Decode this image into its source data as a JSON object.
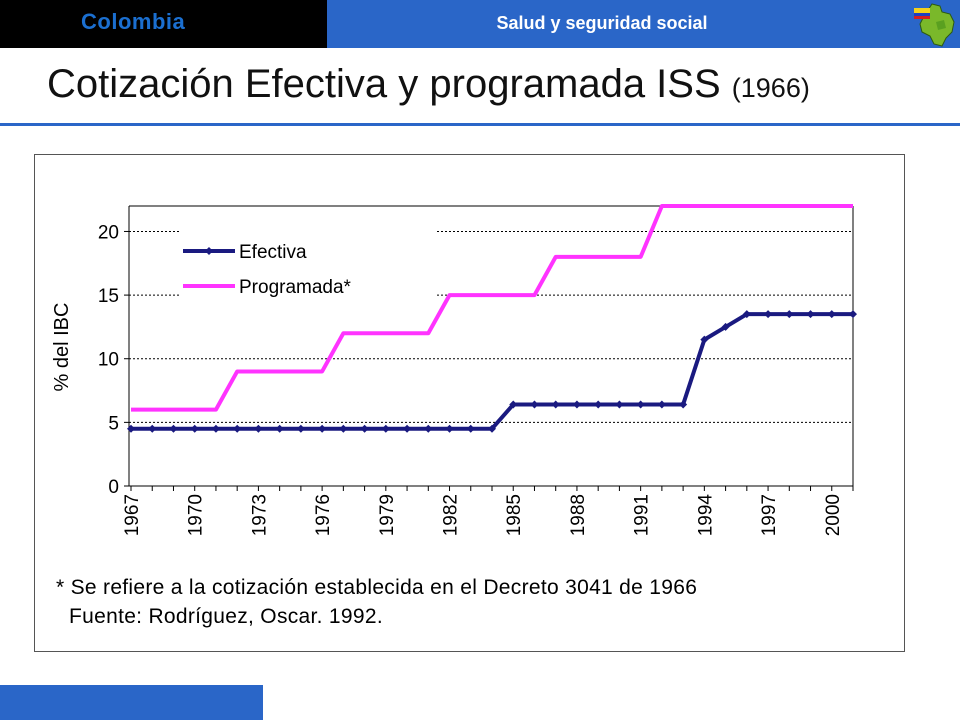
{
  "header": {
    "country": "Colombia",
    "section": "Salud y seguridad social",
    "map_icon": "colombia-map-icon"
  },
  "page": {
    "title_main": "Cotización Efectiva y programada ISS",
    "title_year": "(1966)"
  },
  "colors": {
    "header_dark": "#000000",
    "header_blue": "#2a66c8",
    "country_text": "#1b6fd0",
    "efectiva": "#1a1a80",
    "programada": "#ff33ff"
  },
  "chart_data": {
    "type": "line",
    "ylabel": "% del IBC",
    "xlabel": "",
    "ylim": [
      0,
      22
    ],
    "yticks": [
      0,
      5,
      10,
      15,
      20
    ],
    "x": [
      1967,
      1968,
      1969,
      1970,
      1971,
      1972,
      1973,
      1974,
      1975,
      1976,
      1977,
      1978,
      1979,
      1980,
      1981,
      1982,
      1983,
      1984,
      1985,
      1986,
      1987,
      1988,
      1989,
      1990,
      1991,
      1992,
      1993,
      1994,
      1995,
      1996,
      1997,
      1998,
      1999,
      2000,
      2001
    ],
    "xticks": [
      "1967",
      "1970",
      "1973",
      "1976",
      "1979",
      "1982",
      "1985",
      "1988",
      "1991",
      "1994",
      "1997",
      "2000"
    ],
    "grid": "dotted horizontal",
    "legend_position": "top-left",
    "series": [
      {
        "name": "Efectiva",
        "color": "#1a1a80",
        "marker": "diamond",
        "values": [
          4.5,
          4.5,
          4.5,
          4.5,
          4.5,
          4.5,
          4.5,
          4.5,
          4.5,
          4.5,
          4.5,
          4.5,
          4.5,
          4.5,
          4.5,
          4.5,
          4.5,
          4.5,
          6.4,
          6.4,
          6.4,
          6.4,
          6.4,
          6.4,
          6.4,
          6.4,
          6.4,
          11.5,
          12.5,
          13.5,
          13.5,
          13.5,
          13.5,
          13.5,
          13.5
        ]
      },
      {
        "name": "Programada*",
        "color": "#ff33ff",
        "marker": "none",
        "values": [
          6,
          6,
          6,
          6,
          6,
          9,
          9,
          9,
          9,
          9,
          12,
          12,
          12,
          12,
          12,
          15,
          15,
          15,
          15,
          15,
          18,
          18,
          18,
          18,
          18,
          22,
          22,
          22,
          22,
          22,
          22,
          22,
          22,
          22,
          22
        ]
      }
    ]
  },
  "footnote": {
    "note": "* Se refiere a la cotización establecida en el Decreto 3041 de 1966",
    "source": "Fuente: Rodríguez, Oscar. 1992."
  }
}
